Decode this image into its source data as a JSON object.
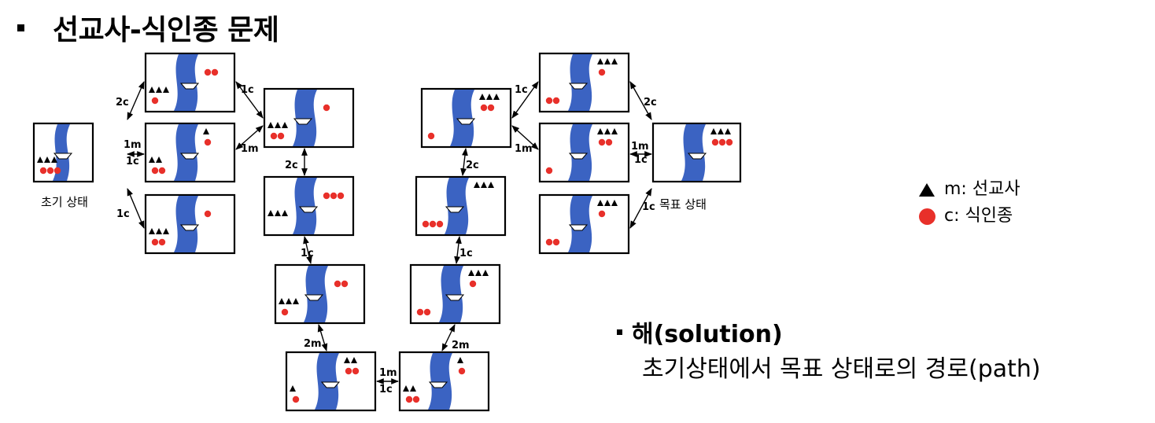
{
  "title": "선교사-식인종 문제",
  "diagram": {
    "initial_label": "초기 상태",
    "goal_label": "목표 상태",
    "moves": {
      "two_c": "2c",
      "one_c": "1c",
      "one_m": "1m",
      "two_m": "2m"
    }
  },
  "legend": {
    "missionary": "m: 선교사",
    "cannibal": "c: 식인종"
  },
  "solution": {
    "heading": "해(solution)",
    "description": "초기상태에서 목표 상태로의 경로(path)"
  },
  "colors": {
    "river": "#3b63c2",
    "cannibal": "#e8302a",
    "missionary": "#000000"
  }
}
